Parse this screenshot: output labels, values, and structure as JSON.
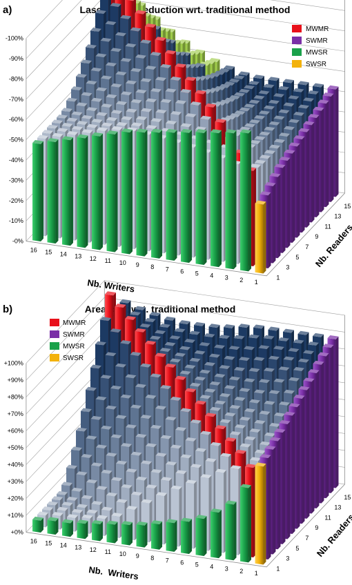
{
  "colors": {
    "MWMR": "#e8101a",
    "SWMR": "#7a2fa7",
    "MWSR": "#1aa14a",
    "SWSR": "#f3b20c",
    "general_light": "#c7cfdc",
    "general_dark": "#1c3a63",
    "top_green": "#9ecb4a"
  },
  "chart_data": [
    {
      "panel": "a)",
      "type": "bar3d",
      "title": "Laser power reduction wrt. traditional method",
      "xlabel": "Nb. Writers",
      "ylabel": "Nb. Readers",
      "zticks": [
        "-100%",
        "-90%",
        "-80%",
        "-70%",
        "-60%",
        "-50%",
        "-40%",
        "-30%",
        "-20%",
        "-10%",
        "-0%"
      ],
      "zlim": [
        0,
        -100
      ],
      "writer_ticks": [
        "16",
        "15",
        "14",
        "13",
        "12",
        "11",
        "10",
        "9",
        "8",
        "7",
        "6",
        "5",
        "4",
        "3",
        "2",
        "1"
      ],
      "reader_ticks": [
        "1",
        "3",
        "5",
        "7",
        "9",
        "11",
        "13",
        "15"
      ],
      "legend": [
        "MWMR",
        "SWMR",
        "MWSR",
        "SWSR"
      ],
      "legend_position": "top-right",
      "writers": 16,
      "readers": 16,
      "series": [
        {
          "name": "MWSR",
          "writers": "2-16",
          "readers": "1",
          "values_pct": [
            -68,
            -67,
            -66,
            -65,
            -64,
            -63,
            -62,
            -61,
            -60,
            -58,
            -56,
            -54,
            -52,
            -50,
            -48
          ]
        },
        {
          "name": "SWSR",
          "writers": "1",
          "readers": "1",
          "values_pct": [
            -34
          ]
        },
        {
          "name": "SWMR",
          "writers": "1",
          "readers": "2-16",
          "values_pct": [
            -36,
            -38,
            -40,
            -42,
            -43,
            -44,
            -45,
            -46,
            -47,
            -48,
            -49,
            -50,
            -51,
            -52,
            -53
          ]
        },
        {
          "name": "MWMR",
          "writers": "n",
          "readers": "n",
          "values_pct": [
            -47,
            -52,
            -56,
            -60,
            -64,
            -67,
            -70,
            -73,
            -76,
            -79,
            -82,
            -85,
            -88,
            -91,
            -94
          ]
        }
      ]
    },
    {
      "panel": "b)",
      "type": "bar3d",
      "title": "Area cost wrt. traditional method",
      "xlabel": "Nb.  Writers",
      "ylabel": "Nb. Readers",
      "zticks": [
        "+100%",
        "+90%",
        "+80%",
        "+70%",
        "+60%",
        "+50%",
        "+40%",
        "+30%",
        "+20%",
        "+10%",
        "+0%"
      ],
      "zlim": [
        0,
        100
      ],
      "writer_ticks": [
        "16",
        "15",
        "14",
        "13",
        "12",
        "11",
        "10",
        "9",
        "8",
        "7",
        "6",
        "5",
        "4",
        "3",
        "2",
        "1"
      ],
      "reader_ticks": [
        "1",
        "3",
        "5",
        "7",
        "9",
        "11",
        "13",
        "15"
      ],
      "legend": [
        "MWMR",
        "SWMR",
        "MWSR",
        "SWSR"
      ],
      "legend_position": "top-left",
      "writers": 16,
      "readers": 16,
      "series": [
        {
          "name": "MWSR",
          "writers": "2-16",
          "readers": "1",
          "values_pct": [
            44,
            33,
            27,
            22,
            19,
            17,
            15,
            13,
            12,
            11,
            10,
            9,
            8,
            8,
            7
          ]
        },
        {
          "name": "SWSR",
          "writers": "1",
          "readers": "1",
          "values_pct": [
            58
          ]
        },
        {
          "name": "SWMR",
          "writers": "1",
          "readers": "2-16",
          "values_pct": [
            60,
            62,
            64,
            66,
            68,
            70,
            72,
            74,
            76,
            78,
            80,
            82,
            84,
            86,
            88
          ]
        },
        {
          "name": "MWMR",
          "writers": "n",
          "readers": "n",
          "values_pct": [
            53,
            57,
            60,
            63,
            66,
            69,
            72,
            75,
            78,
            80,
            83,
            86,
            89,
            92,
            95
          ]
        }
      ]
    }
  ]
}
